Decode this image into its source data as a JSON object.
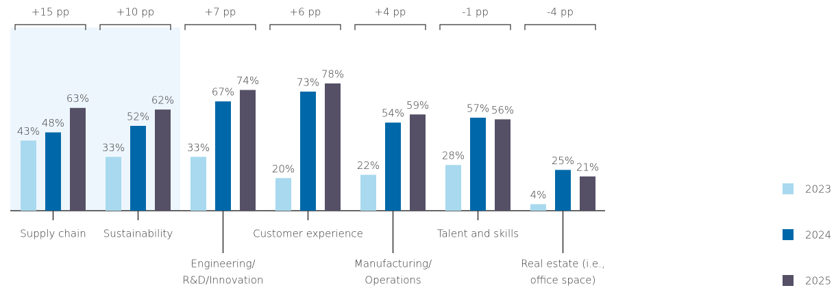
{
  "chart_data": {
    "type": "bar",
    "categories": [
      [
        "Supply chain"
      ],
      [
        "Sustainability"
      ],
      [
        "Engineering/",
        "R&D/Innovation"
      ],
      [
        "Customer experience"
      ],
      [
        "Manufacturing/",
        "Operations"
      ],
      [
        "Talent and skills"
      ],
      [
        "Real estate (i.e.,",
        "office space)"
      ]
    ],
    "differences": [
      "+15 pp",
      "+10 pp",
      "+7 pp",
      "+6 pp",
      "+4 pp",
      "-1 pp",
      "-4 pp"
    ],
    "series": [
      {
        "name": "2023",
        "color": "#a8d9ee",
        "values": [
          43,
          33,
          33,
          20,
          22,
          28,
          4
        ],
        "value_labels": [
          "43%",
          "33%",
          "33%",
          "20%",
          "22%",
          "28%",
          "4%"
        ]
      },
      {
        "name": "2024",
        "color": "#0068a8",
        "values": [
          48,
          52,
          67,
          73,
          54,
          57,
          25
        ],
        "value_labels": [
          "48%",
          "52%",
          "67%",
          "73%",
          "54%",
          "57%",
          "25%"
        ]
      },
      {
        "name": "2025",
        "color": "#555066",
        "values": [
          63,
          62,
          74,
          78,
          59,
          56,
          21
        ],
        "value_labels": [
          "63%",
          "62%",
          "74%",
          "78%",
          "59%",
          "56%",
          "21%"
        ]
      }
    ],
    "legend": "right"
  }
}
